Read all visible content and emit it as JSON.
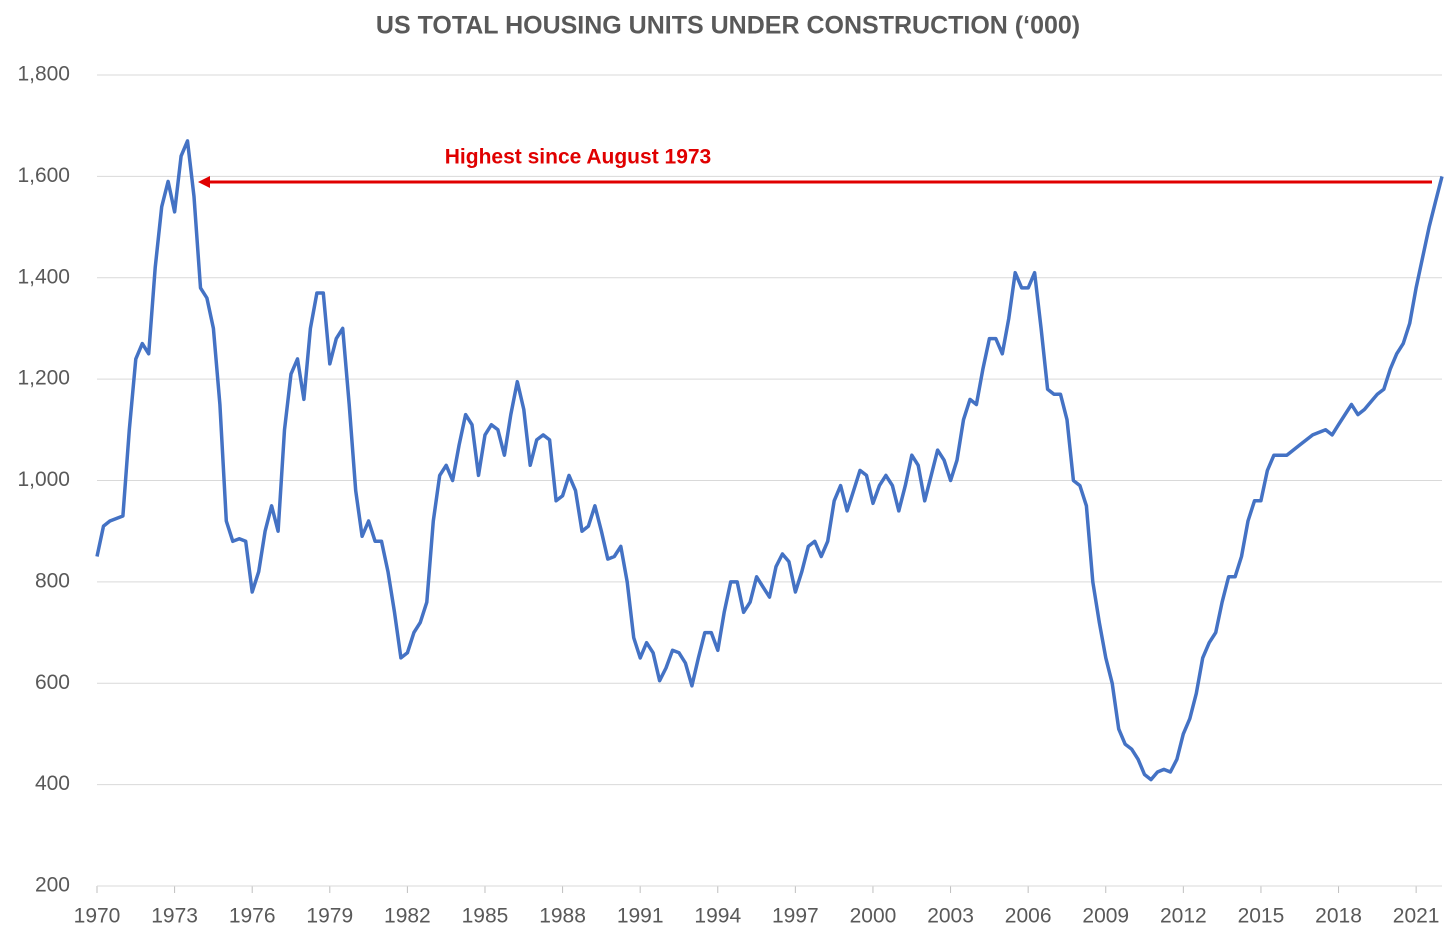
{
  "chart_data": {
    "type": "line",
    "title": "US TOTAL HOUSING UNITS UNDER CONSTRUCTION (‘000)",
    "annotation": "Highest since August 1973",
    "xlim": [
      1970,
      2022
    ],
    "xticks": [
      1970,
      1973,
      1976,
      1979,
      1982,
      1985,
      1988,
      1991,
      1994,
      1997,
      2000,
      2003,
      2006,
      2009,
      2012,
      2015,
      2018,
      2021
    ],
    "ylim": [
      200,
      1800
    ],
    "yticks": [
      200,
      400,
      600,
      800,
      {
        "value": 1000,
        "label": "1,000"
      },
      {
        "value": 1200,
        "label": "1,200"
      },
      {
        "value": 1400,
        "label": "1,400"
      },
      {
        "value": 1600,
        "label": "1,600"
      },
      {
        "value": 1800,
        "label": "1,800"
      }
    ],
    "grid": true,
    "series": [
      {
        "color": "#4472c4",
        "x": [
          1970.0,
          1970.25,
          1970.5,
          1970.75,
          1971.0,
          1971.25,
          1971.5,
          1971.75,
          1972.0,
          1972.25,
          1972.5,
          1972.75,
          1973.0,
          1973.25,
          1973.5,
          1973.75,
          1974.0,
          1974.25,
          1974.5,
          1974.75,
          1975.0,
          1975.25,
          1975.5,
          1975.75,
          1976.0,
          1976.25,
          1976.5,
          1976.75,
          1977.0,
          1977.25,
          1977.5,
          1977.75,
          1978.0,
          1978.25,
          1978.5,
          1978.75,
          1979.0,
          1979.25,
          1979.5,
          1979.75,
          1980.0,
          1980.25,
          1980.5,
          1980.75,
          1981.0,
          1981.25,
          1981.5,
          1981.75,
          1982.0,
          1982.25,
          1982.5,
          1982.75,
          1983.0,
          1983.25,
          1983.5,
          1983.75,
          1984.0,
          1984.25,
          1984.5,
          1984.75,
          1985.0,
          1985.25,
          1985.5,
          1985.75,
          1986.0,
          1986.25,
          1986.5,
          1986.75,
          1987.0,
          1987.25,
          1987.5,
          1987.75,
          1988.0,
          1988.25,
          1988.5,
          1988.75,
          1989.0,
          1989.25,
          1989.5,
          1989.75,
          1990.0,
          1990.25,
          1990.5,
          1990.75,
          1991.0,
          1991.25,
          1991.5,
          1991.75,
          1992.0,
          1992.25,
          1992.5,
          1992.75,
          1993.0,
          1993.25,
          1993.5,
          1993.75,
          1994.0,
          1994.25,
          1994.5,
          1994.75,
          1995.0,
          1995.25,
          1995.5,
          1995.75,
          1996.0,
          1996.25,
          1996.5,
          1996.75,
          1997.0,
          1997.25,
          1997.5,
          1997.75,
          1998.0,
          1998.25,
          1998.5,
          1998.75,
          1999.0,
          1999.25,
          1999.5,
          1999.75,
          2000.0,
          2000.25,
          2000.5,
          2000.75,
          2001.0,
          2001.25,
          2001.5,
          2001.75,
          2002.0,
          2002.25,
          2002.5,
          2002.75,
          2003.0,
          2003.25,
          2003.5,
          2003.75,
          2004.0,
          2004.25,
          2004.5,
          2004.75,
          2005.0,
          2005.25,
          2005.5,
          2005.75,
          2006.0,
          2006.25,
          2006.5,
          2006.75,
          2007.0,
          2007.25,
          2007.5,
          2007.75,
          2008.0,
          2008.25,
          2008.5,
          2008.75,
          2009.0,
          2009.25,
          2009.5,
          2009.75,
          2010.0,
          2010.25,
          2010.5,
          2010.75,
          2011.0,
          2011.25,
          2011.5,
          2011.75,
          2012.0,
          2012.25,
          2012.5,
          2012.75,
          2013.0,
          2013.25,
          2013.5,
          2013.75,
          2014.0,
          2014.25,
          2014.5,
          2014.75,
          2015.0,
          2015.25,
          2015.5,
          2015.75,
          2016.0,
          2016.5,
          2017.0,
          2017.5,
          2017.75,
          2018.0,
          2018.5,
          2018.75,
          2019.0,
          2019.5,
          2019.75,
          2020.0,
          2020.25,
          2020.5,
          2020.75,
          2021.0,
          2021.25,
          2021.5,
          2021.75,
          2022.0
        ],
        "values": [
          850,
          910,
          920,
          925,
          930,
          1100,
          1240,
          1270,
          1250,
          1420,
          1540,
          1590,
          1530,
          1640,
          1670,
          1560,
          1380,
          1360,
          1300,
          1150,
          920,
          880,
          885,
          880,
          780,
          820,
          900,
          950,
          900,
          1100,
          1210,
          1240,
          1160,
          1300,
          1370,
          1370,
          1230,
          1280,
          1300,
          1150,
          980,
          890,
          920,
          880,
          880,
          820,
          740,
          650,
          660,
          700,
          720,
          760,
          920,
          1010,
          1030,
          1000,
          1070,
          1130,
          1110,
          1010,
          1090,
          1110,
          1100,
          1050,
          1130,
          1195,
          1140,
          1030,
          1080,
          1090,
          1080,
          960,
          970,
          1010,
          980,
          900,
          910,
          950,
          900,
          845,
          850,
          870,
          800,
          690,
          650,
          680,
          660,
          605,
          630,
          665,
          660,
          640,
          595,
          650,
          700,
          700,
          665,
          740,
          800,
          800,
          740,
          760,
          810,
          790,
          770,
          830,
          855,
          840,
          780,
          820,
          870,
          880,
          850,
          880,
          960,
          990,
          940,
          980,
          1020,
          1010,
          955,
          990,
          1010,
          990,
          940,
          990,
          1050,
          1030,
          960,
          1010,
          1060,
          1040,
          1000,
          1040,
          1120,
          1160,
          1150,
          1220,
          1280,
          1280,
          1250,
          1320,
          1410,
          1380,
          1380,
          1410,
          1300,
          1180,
          1170,
          1170,
          1120,
          1000,
          990,
          950,
          800,
          720,
          650,
          600,
          510,
          480,
          470,
          450,
          420,
          410,
          425,
          430,
          425,
          450,
          500,
          530,
          580,
          650,
          680,
          700,
          760,
          810,
          810,
          850,
          920,
          960,
          960,
          1020,
          1050,
          1050,
          1050,
          1070,
          1090,
          1100,
          1090,
          1110,
          1150,
          1130,
          1140,
          1170,
          1180,
          1220,
          1250,
          1270,
          1310,
          1380,
          1440,
          1500,
          1550,
          1600
        ]
      }
    ]
  }
}
